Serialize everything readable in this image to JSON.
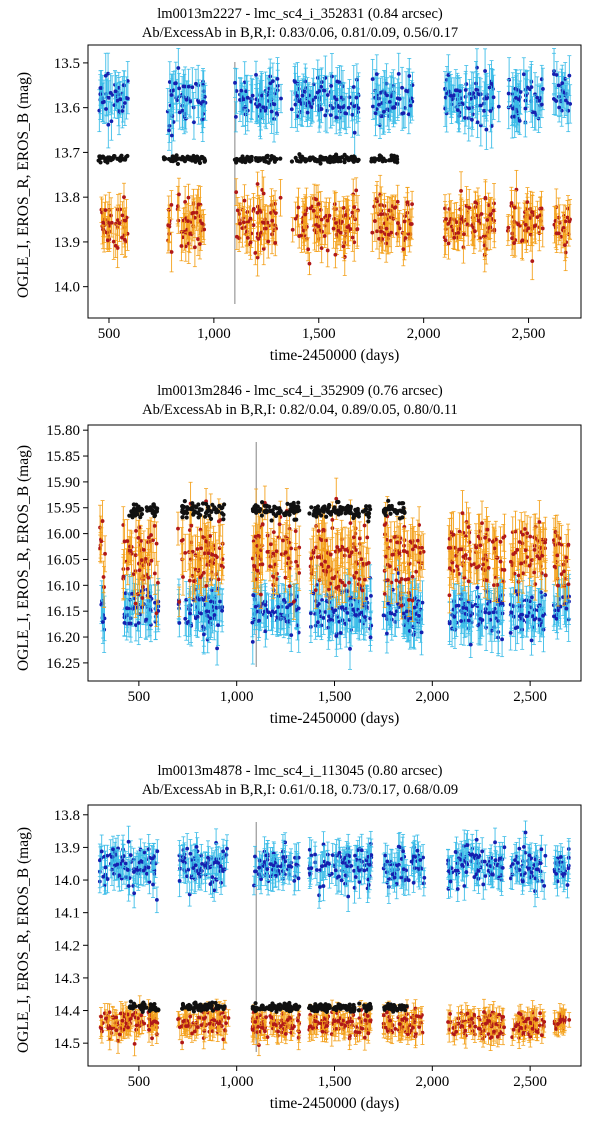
{
  "colors": {
    "eros_b_err": "#3dbde8",
    "eros_b_pt": "#1520b0",
    "eros_r_err": "#f4a21e",
    "eros_r_pt": "#b01818",
    "ogle_i": "#111111",
    "marker_line": "#999999"
  },
  "chart_data": [
    {
      "type": "scatter",
      "title": "lm0013m2227 - lmc_sc4_i_352831 (0.84 arcsec)",
      "subtitle": "Ab/ExcessAb in B,R,I: 0.83/0.06, 0.81/0.09, 0.56/0.17",
      "xlabel": "time-2450000 (days)",
      "ylabel": "OGLE_I, EROS_R, EROS_B (mag)",
      "xlim": [
        400,
        2750
      ],
      "ylim": [
        14.07,
        13.46
      ],
      "xticks": [
        500,
        1000,
        1500,
        2000,
        2500
      ],
      "xtick_labels": [
        "500",
        "1,000",
        "1,500",
        "2,000",
        "2,500"
      ],
      "yticks": [
        13.5,
        13.6,
        13.7,
        13.8,
        13.9,
        14.0
      ],
      "ytick_labels": [
        "13.5",
        "13.6",
        "13.7",
        "13.8",
        "13.9",
        "14.0"
      ],
      "marker_x": 1100,
      "seasons": [
        [
          450,
          590
        ],
        [
          780,
          960
        ],
        [
          1100,
          1320
        ],
        [
          1370,
          1690
        ],
        [
          1750,
          1950
        ],
        [
          2100,
          2360
        ],
        [
          2400,
          2570
        ],
        [
          2620,
          2700
        ]
      ],
      "ogle_seasons": [
        [
          450,
          590
        ],
        [
          760,
          960
        ],
        [
          1100,
          1320
        ],
        [
          1370,
          1690
        ],
        [
          1750,
          1880
        ]
      ],
      "series": [
        {
          "name": "EROS_B",
          "mean": 13.58,
          "scatter": 0.025,
          "err": 0.04,
          "n_per_day": 0.3
        },
        {
          "name": "OGLE_I",
          "mean": 13.715,
          "scatter": 0.004,
          "err": 0.003,
          "n_per_day": 0.28
        },
        {
          "name": "EROS_R",
          "mean": 13.86,
          "scatter": 0.03,
          "err": 0.035,
          "n_per_day": 0.3
        }
      ]
    },
    {
      "type": "scatter",
      "title": "lm0013m2846 - lmc_sc4_i_352909 (0.76 arcsec)",
      "subtitle": "Ab/ExcessAb in B,R,I: 0.82/0.04, 0.89/0.05, 0.80/0.11",
      "xlabel": "time-2450000 (days)",
      "ylabel": "OGLE_I, EROS_R, EROS_B (mag)",
      "xlim": [
        240,
        2760
      ],
      "ylim": [
        16.285,
        15.79
      ],
      "xticks": [
        500,
        1000,
        1500,
        2000,
        2500
      ],
      "xtick_labels": [
        "500",
        "1,000",
        "1,500",
        "2,000",
        "2,500"
      ],
      "yticks": [
        15.8,
        15.85,
        15.9,
        15.95,
        16.0,
        16.05,
        16.1,
        16.15,
        16.2,
        16.25
      ],
      "ytick_labels": [
        "15.80",
        "15.85",
        "15.90",
        "15.95",
        "16.00",
        "16.05",
        "16.10",
        "16.15",
        "16.20",
        "16.25"
      ],
      "marker_x": 1100,
      "seasons": [
        [
          300,
          330
        ],
        [
          420,
          600
        ],
        [
          700,
          930
        ],
        [
          1080,
          1320
        ],
        [
          1370,
          1690
        ],
        [
          1750,
          1960
        ],
        [
          2080,
          2370
        ],
        [
          2400,
          2580
        ],
        [
          2620,
          2700
        ]
      ],
      "ogle_seasons": [
        [
          450,
          600
        ],
        [
          720,
          940
        ],
        [
          1080,
          1320
        ],
        [
          1370,
          1690
        ],
        [
          1750,
          1860
        ]
      ],
      "series": [
        {
          "name": "EROS_B",
          "mean": 16.15,
          "scatter": 0.022,
          "err": 0.035,
          "n_per_day": 0.3
        },
        {
          "name": "OGLE_I",
          "mean": 15.955,
          "scatter": 0.007,
          "err": 0.004,
          "n_per_day": 0.3
        },
        {
          "name": "EROS_R",
          "mean": 16.04,
          "scatter": 0.035,
          "err": 0.035,
          "n_per_day": 0.3
        }
      ]
    },
    {
      "type": "scatter",
      "title": "lm0013m4878 - lmc_sc4_i_113045 (0.80 arcsec)",
      "subtitle": "Ab/ExcessAb in B,R,I: 0.61/0.18, 0.73/0.17, 0.68/0.09",
      "xlabel": "time-2450000 (days)",
      "ylabel": "OGLE_I, EROS_R, EROS_B (mag)",
      "xlim": [
        240,
        2760
      ],
      "ylim": [
        14.57,
        13.77
      ],
      "xticks": [
        500,
        1000,
        1500,
        2000,
        2500
      ],
      "xtick_labels": [
        "500",
        "1,000",
        "1,500",
        "2,000",
        "2,500"
      ],
      "yticks": [
        13.8,
        13.9,
        14.0,
        14.1,
        14.2,
        14.3,
        14.4,
        14.5
      ],
      "ytick_labels": [
        "13.8",
        "13.9",
        "14.0",
        "14.1",
        "14.2",
        "14.3",
        "14.4",
        "14.5"
      ],
      "marker_x": 1100,
      "seasons": [
        [
          300,
          600
        ],
        [
          700,
          960
        ],
        [
          1080,
          1320
        ],
        [
          1370,
          1690
        ],
        [
          1750,
          1960
        ],
        [
          2080,
          2370
        ],
        [
          2400,
          2580
        ],
        [
          2620,
          2700
        ]
      ],
      "ogle_seasons": [
        [
          450,
          600
        ],
        [
          720,
          940
        ],
        [
          1080,
          1320
        ],
        [
          1370,
          1690
        ],
        [
          1750,
          1870
        ]
      ],
      "series": [
        {
          "name": "EROS_B",
          "mean": 13.955,
          "scatter": 0.03,
          "err": 0.04,
          "n_per_day": 0.3
        },
        {
          "name": "OGLE_I",
          "mean": 14.39,
          "scatter": 0.006,
          "err": 0.004,
          "n_per_day": 0.3
        },
        {
          "name": "EROS_R",
          "mean": 14.44,
          "scatter": 0.02,
          "err": 0.03,
          "n_per_day": 0.3
        }
      ]
    }
  ]
}
